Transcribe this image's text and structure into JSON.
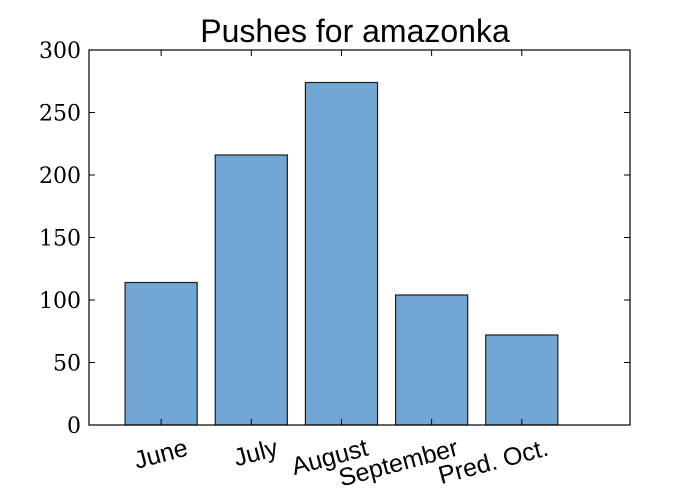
{
  "chart_data": {
    "type": "bar",
    "title": "Pushes for amazonka",
    "xlabel": "",
    "ylabel": "",
    "categories": [
      "June",
      "July",
      "August",
      "September",
      "Pred. Oct."
    ],
    "values": [
      114,
      216,
      274,
      104,
      72
    ],
    "ylim": [
      0,
      300
    ],
    "yticks": [
      "0",
      "50",
      "100",
      "150",
      "200",
      "250",
      "300"
    ],
    "bar_color": "#72a6d5",
    "grid": false,
    "legend": "none"
  }
}
